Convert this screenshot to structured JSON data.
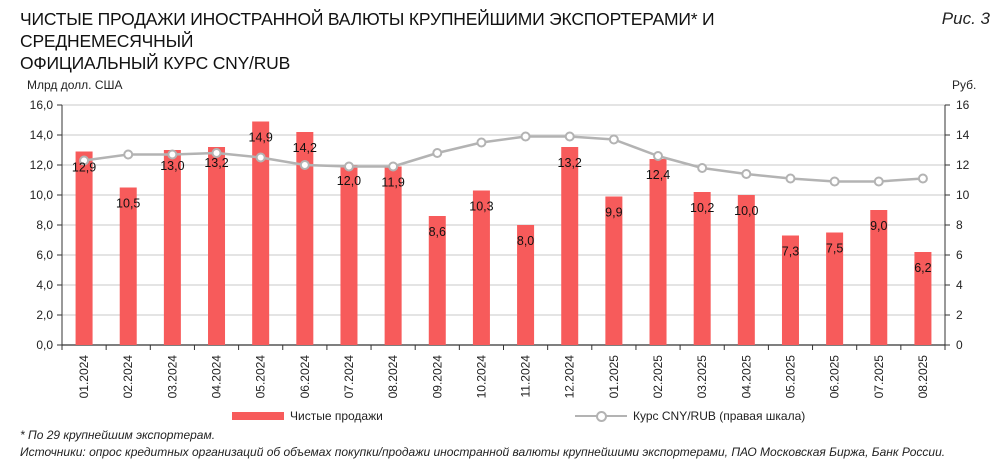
{
  "header": {
    "title_line1": "ЧИСТЫЕ ПРОДАЖИ ИНОСТРАННОЙ ВАЛЮТЫ КРУПНЕЙШИМИ ЭКСПОРТЕРАМИ* И СРЕДНЕМЕСЯЧНЫЙ",
    "title_line2": "ОФИЦИАЛЬНЫЙ КУРС CNY/RUB",
    "figure_label": "Рис. 3"
  },
  "axes": {
    "left_unit": "Млрд долл. США",
    "right_unit": "Руб.",
    "left_ticks": [
      "0,0",
      "2,0",
      "4,0",
      "6,0",
      "8,0",
      "10,0",
      "12,0",
      "14,0",
      "16,0"
    ],
    "right_ticks": [
      "0",
      "2",
      "4",
      "6",
      "8",
      "10",
      "12",
      "14",
      "16"
    ]
  },
  "legend": {
    "bar_label": "Чистые продажи",
    "line_label": "Курс CNY/RUB (правая шкала)"
  },
  "notes": {
    "footnote": "* По 29 крупнейшим экспортерам.",
    "sources": "Источники: опрос кредитных организаций об объемах покупки/продажи иностранной валюты крупнейшими экспортерами, ПАО Московская Биржа, Банк России."
  },
  "colors": {
    "bar": "#f75b5b",
    "line": "#b3b3b3",
    "grid": "#d4d4d4",
    "axis": "#333333"
  },
  "chart_data": {
    "type": "bar",
    "title": "Чистые продажи иностранной валюты крупнейшими экспортерами* и среднемесячный официальный курс CNY/RUB",
    "categories": [
      "01.2024",
      "02.2024",
      "03.2024",
      "04.2024",
      "05.2024",
      "06.2024",
      "07.2024",
      "08.2024",
      "09.2024",
      "10.2024",
      "11.2024",
      "12.2024",
      "01.2025",
      "02.2025",
      "03.2025",
      "04.2025",
      "05.2025",
      "06.2025",
      "07.2025",
      "08.2025"
    ],
    "series": [
      {
        "name": "Чистые продажи",
        "type": "bar",
        "axis": "left",
        "values": [
          12.9,
          10.5,
          13.0,
          13.2,
          14.9,
          14.2,
          12.0,
          11.9,
          8.6,
          10.3,
          8.0,
          13.2,
          9.9,
          12.4,
          10.2,
          10.0,
          7.3,
          7.5,
          9.0,
          6.2
        ],
        "labels": [
          "12,9",
          "10,5",
          "13,0",
          "13,2",
          "14,9",
          "14,2",
          "12,0",
          "11,9",
          "8,6",
          "10,3",
          "8,0",
          "13,2",
          "9,9",
          "12,4",
          "10,2",
          "10,0",
          "7,3",
          "7,5",
          "9,0",
          "6,2"
        ]
      },
      {
        "name": "Курс CNY/RUB (правая шкала)",
        "type": "line",
        "axis": "right",
        "values": [
          12.3,
          12.7,
          12.7,
          12.8,
          12.5,
          12.0,
          11.9,
          11.9,
          12.8,
          13.5,
          13.9,
          13.9,
          13.7,
          12.6,
          11.8,
          11.4,
          11.1,
          10.9,
          10.9,
          11.1
        ]
      }
    ],
    "xlabel": "",
    "ylabel": "Млрд долл. США",
    "y2label": "Руб.",
    "ylim": [
      0,
      16
    ],
    "y2lim": [
      0,
      16
    ],
    "grid": true,
    "legend_position": "bottom"
  }
}
